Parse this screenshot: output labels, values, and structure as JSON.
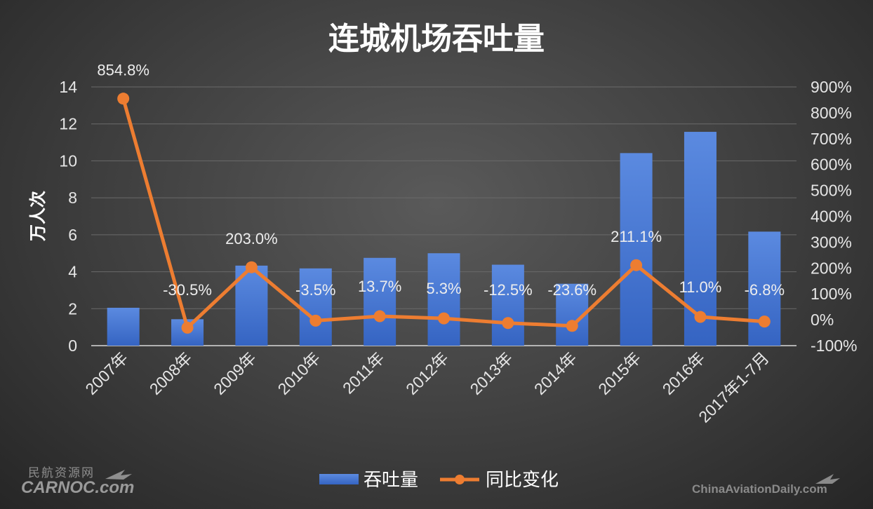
{
  "chart_data": {
    "type": "bar+line",
    "title": "连城机场吞吐量",
    "categories": [
      "2007年",
      "2008年",
      "2009年",
      "2010年",
      "2011年",
      "2012年",
      "2013年",
      "2014年",
      "2015年",
      "2016年",
      "2017年1-7月"
    ],
    "series": [
      {
        "name": "吞吐量",
        "type": "bar",
        "axis": "left",
        "color": "#4472c4",
        "values": [
          2.05,
          1.43,
          4.33,
          4.18,
          4.75,
          5.0,
          4.38,
          3.35,
          10.42,
          11.57,
          6.17
        ]
      },
      {
        "name": "同比变化",
        "type": "line",
        "axis": "right",
        "color": "#ed7d31",
        "values": [
          854.8,
          -30.5,
          203.0,
          -3.5,
          13.7,
          5.3,
          -12.5,
          -23.6,
          211.1,
          11.0,
          -6.8
        ],
        "labels": [
          "854.8%",
          "-30.5%",
          "203.0%",
          "-3.5%",
          "13.7%",
          "5.3%",
          "-12.5%",
          "-23.6%",
          "211.1%",
          "11.0%",
          "-6.8%"
        ]
      }
    ],
    "ylabel": "万人次",
    "ylim": [
      0,
      14
    ],
    "yticks": [
      "0",
      "2",
      "4",
      "6",
      "8",
      "10",
      "12",
      "14"
    ],
    "y2lim": [
      -100,
      900
    ],
    "y2ticks": [
      "-100%",
      "0%",
      "100%",
      "200%",
      "300%",
      "400%",
      "500%",
      "600%",
      "700%",
      "800%",
      "900%"
    ],
    "grid": true,
    "legend": "bottom"
  },
  "watermark_left": {
    "line1": "民航资源网",
    "line2": "CARNOC.com"
  },
  "watermark_right": "ChinaAviationDaily.com"
}
